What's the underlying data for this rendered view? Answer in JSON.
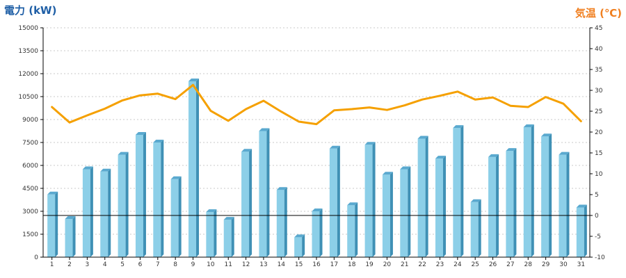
{
  "chart_data": {
    "type": "bar",
    "title": "",
    "left_axis": {
      "label": "電力 (kW)",
      "ylim": [
        0,
        15000
      ],
      "ticks": [
        0,
        1500,
        3000,
        4500,
        6000,
        7500,
        9000,
        10500,
        12000,
        13500,
        15000
      ]
    },
    "right_axis": {
      "label": "気温 (℃)",
      "ylim": [
        -10,
        45
      ],
      "ticks": [
        -10,
        -5,
        0,
        5,
        10,
        15,
        20,
        25,
        30,
        35,
        40,
        45
      ]
    },
    "categories": [
      "1",
      "2",
      "3",
      "4",
      "5",
      "6",
      "7",
      "8",
      "9",
      "10",
      "11",
      "12",
      "13",
      "14",
      "15",
      "16",
      "17",
      "18",
      "19",
      "20",
      "21",
      "22",
      "23",
      "24",
      "25",
      "26",
      "27",
      "28",
      "29",
      "30",
      "31"
    ],
    "reference_line": {
      "axis": "right",
      "value": 0
    },
    "grid": true,
    "series": [
      {
        "name": "電力 (kW)",
        "kind": "bar",
        "axis": "left",
        "values": [
          4100,
          2500,
          5750,
          5600,
          6700,
          8000,
          7500,
          5100,
          11500,
          2950,
          2450,
          6900,
          8250,
          4400,
          1300,
          3000,
          7100,
          3400,
          7350,
          5400,
          5750,
          7750,
          6450,
          8450,
          3600,
          6550,
          6950,
          8500,
          7900,
          6700,
          3250
        ]
      },
      {
        "name": "気温 (℃)",
        "kind": "line",
        "axis": "right",
        "values": [
          26.0,
          22.3,
          24.0,
          25.6,
          27.6,
          28.8,
          29.2,
          27.9,
          31.3,
          25.1,
          22.7,
          25.5,
          27.5,
          24.9,
          22.5,
          21.9,
          25.2,
          25.5,
          25.9,
          25.3,
          26.4,
          27.8,
          28.7,
          29.7,
          27.8,
          28.3,
          26.3,
          26.0,
          28.4,
          26.8,
          22.6
        ]
      }
    ],
    "colors": {
      "bar_front": "#8ccfe8",
      "bar_side": "#3f90b5",
      "bar_top": "#5aa9cf",
      "line": "#f5a000",
      "left_title": "#1f5fa6",
      "right_title": "#f07f1f"
    }
  }
}
